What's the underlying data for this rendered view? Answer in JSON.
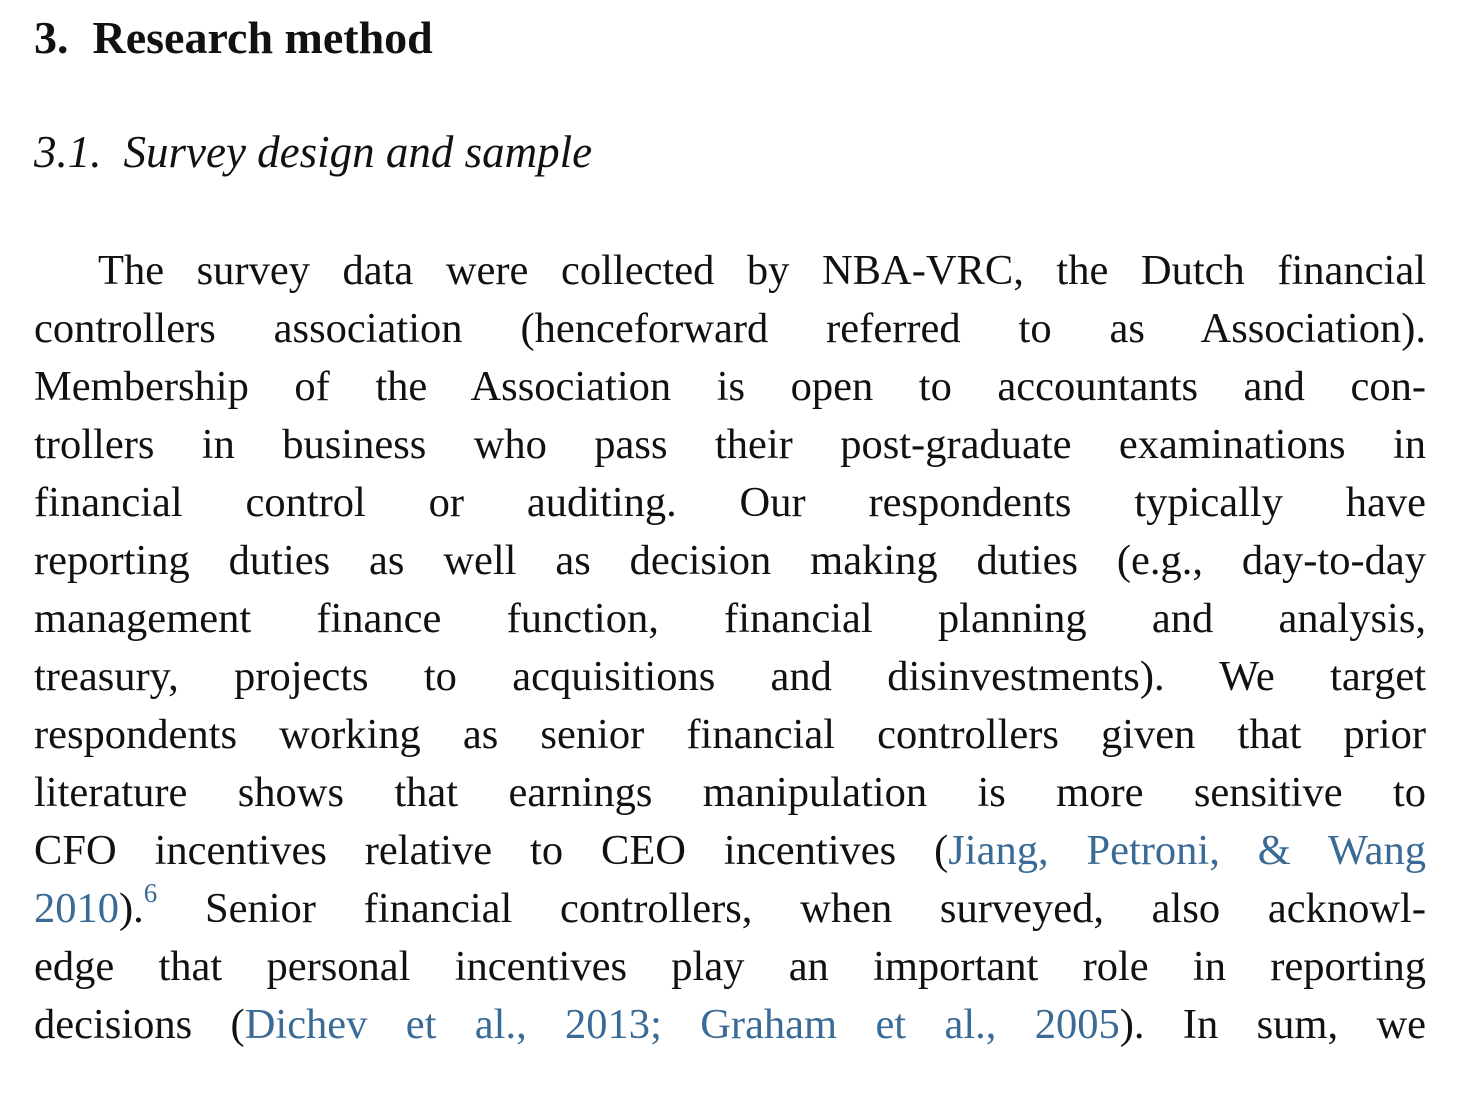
{
  "section": {
    "number": "3.",
    "title": "Research method"
  },
  "subsection": {
    "number": "3.1.",
    "title": "Survey design and sample"
  },
  "paragraph": {
    "line_01": "The survey data were collected by NBA-VRC, the Dutch financial",
    "line_02": "controllers association (henceforward referred to as Association).",
    "line_03": "Membership of the Association is open to accountants and con-",
    "line_04": "trollers in business who pass their post-graduate examinations in",
    "line_05": "financial control or auditing. Our respondents typically have",
    "line_06": "reporting duties as well as decision making duties (e.g., day-to-day",
    "line_07": "management finance function, financial planning and analysis,",
    "line_08": "treasury, projects to acquisitions and disinvestments). We target",
    "line_09": "respondents working as senior financial controllers given that prior",
    "line_10": "literature shows that earnings manipulation is more sensitive to",
    "line_11_text": "CFO incentives relative to CEO incentives (",
    "line_11_link": "Jiang, Petroni, & Wang",
    "line_12_link": "2010",
    "line_12_text_a": ").",
    "line_12_footnote": "6",
    "line_12_text_b": " Senior financial controllers, when surveyed, also acknowl-",
    "line_13": "edge that personal incentives play an important role in reporting",
    "line_14_text_a": "decisions (",
    "line_14_link_1": "Dichev et al., 2013",
    "line_14_sep": "; ",
    "line_14_link_2": "Graham et al., 2005",
    "line_14_text_b": "). In sum, we"
  },
  "colors": {
    "text": "#111111",
    "citation_link": "#3a6b96",
    "background": "#ffffff"
  }
}
